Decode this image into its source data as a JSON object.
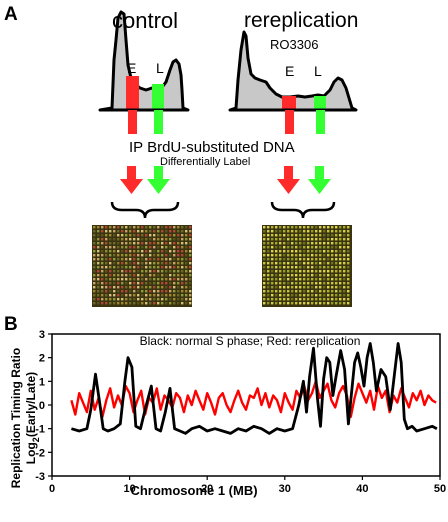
{
  "panel_a": {
    "label": "A",
    "control_title": "control",
    "rerep_title": "rereplication",
    "rerep_subtitle": "RO3306",
    "early_label": "E",
    "late_label": "L",
    "ip_text": "IP BrdU-substituted DNA",
    "diff_label": "Differentially Label",
    "colors": {
      "early": "#ff2a2a",
      "late": "#33ff33",
      "histogram": "#c8c8c8",
      "array_base": "#3a3510"
    }
  },
  "panel_b": {
    "label": "B",
    "chart_data": {
      "type": "line",
      "annotation": "Black: normal S phase; Red: rereplication",
      "xlabel": "Chromosome 1   (MB)",
      "ylabel_line1": "Replication Timing Ratio",
      "ylabel_line2_main": "Log",
      "ylabel_line2_sub": "2",
      "ylabel_line2_rest": "(Early/Late)",
      "xlim": [
        0,
        50
      ],
      "ylim": [
        -3,
        3
      ],
      "xticks": [
        0,
        10,
        20,
        30,
        40,
        50
      ],
      "yticks": [
        3,
        2,
        1,
        0,
        -1,
        -2,
        -3
      ],
      "grid": false,
      "series": [
        {
          "color": "#000000",
          "x": [
            2.5,
            3.5,
            4.5,
            5.0,
            5.6,
            6.1,
            6.6,
            7.2,
            8.0,
            8.8,
            9.4,
            9.8,
            10.3,
            10.8,
            11.4,
            12.0,
            12.8,
            13.4,
            14.0,
            14.6,
            15.2,
            15.8,
            16.5,
            17.2,
            18.0,
            19.0,
            20.0,
            21.0,
            22.0,
            23.0,
            24.0,
            25.0,
            26.0,
            27.0,
            28.0,
            29.0,
            30.0,
            31.0,
            31.8,
            32.4,
            32.8,
            33.2,
            33.7,
            34.2,
            34.6,
            35.0,
            35.4,
            35.8,
            36.2,
            36.6,
            37.2,
            37.7,
            38.2,
            38.6,
            39.0,
            39.4,
            39.8,
            40.2,
            40.6,
            41.0,
            41.4,
            41.8,
            42.4,
            43.0,
            43.6,
            44.2,
            44.6,
            45.0,
            45.4,
            45.8,
            46.4,
            47.0,
            48.0,
            49.0,
            49.6
          ],
          "y": [
            -1.0,
            -1.1,
            -1.0,
            -0.2,
            1.3,
            0.2,
            -1.0,
            -1.1,
            -1.0,
            -0.8,
            1.0,
            2.0,
            1.6,
            -0.9,
            -1.0,
            -0.2,
            0.8,
            -1.0,
            -1.1,
            -0.3,
            0.7,
            -1.0,
            -1.1,
            -1.2,
            -1.0,
            -0.9,
            -1.1,
            -1.0,
            -1.1,
            -1.2,
            -1.0,
            -1.1,
            -0.9,
            -1.0,
            -1.2,
            -1.0,
            -1.1,
            -1.0,
            0.0,
            1.0,
            -0.3,
            1.2,
            2.4,
            0.3,
            -0.9,
            1.1,
            2.0,
            1.8,
            0.4,
            1.2,
            2.3,
            1.5,
            -0.8,
            0.5,
            1.8,
            2.2,
            1.6,
            0.8,
            2.0,
            2.6,
            1.8,
            0.6,
            1.5,
            1.2,
            -0.2,
            1.5,
            2.6,
            1.8,
            -0.6,
            -1.0,
            -0.9,
            -1.1,
            -1.0,
            -0.9,
            -1.0
          ]
        },
        {
          "color": "#ff0000",
          "x": [
            2.5,
            3.0,
            3.5,
            4.0,
            4.5,
            5.0,
            5.5,
            6.0,
            6.5,
            7.0,
            7.5,
            8.0,
            8.5,
            9.0,
            9.5,
            10.0,
            10.5,
            11.0,
            11.5,
            12.0,
            12.5,
            13.0,
            13.5,
            14.0,
            14.5,
            15.0,
            15.5,
            16.0,
            16.5,
            17.0,
            17.5,
            18.0,
            18.5,
            19.0,
            19.5,
            20.0,
            20.5,
            21.0,
            21.5,
            22.0,
            22.5,
            23.0,
            23.5,
            24.0,
            24.5,
            25.0,
            25.5,
            26.0,
            26.5,
            27.0,
            27.5,
            28.0,
            28.5,
            29.0,
            29.5,
            30.0,
            30.5,
            31.0,
            31.5,
            32.0,
            32.5,
            33.0,
            33.5,
            34.0,
            34.5,
            35.0,
            35.5,
            36.0,
            36.5,
            37.0,
            37.5,
            38.0,
            38.5,
            39.0,
            39.5,
            40.0,
            40.5,
            41.0,
            41.5,
            42.0,
            42.5,
            43.0,
            43.5,
            44.0,
            44.5,
            45.0,
            45.5,
            46.0,
            46.5,
            47.0,
            47.5,
            48.0,
            48.5,
            49.0,
            49.5
          ],
          "y": [
            0.2,
            -0.4,
            0.5,
            0.1,
            -0.3,
            0.6,
            -0.2,
            0.3,
            -0.5,
            0.2,
            0.7,
            -0.1,
            0.4,
            0.0,
            0.8,
            0.5,
            -0.3,
            0.2,
            0.6,
            -0.4,
            0.3,
            0.1,
            0.7,
            -0.2,
            0.4,
            0.2,
            -0.1,
            0.5,
            0.3,
            -0.3,
            0.4,
            0.0,
            0.6,
            0.2,
            -0.2,
            0.5,
            0.1,
            -0.4,
            0.3,
            0.5,
            0.0,
            -0.3,
            0.2,
            0.6,
            0.1,
            -0.2,
            0.4,
            0.3,
            0.7,
            0.0,
            0.5,
            -0.1,
            0.4,
            0.2,
            -0.3,
            0.5,
            0.1,
            -0.2,
            0.6,
            0.3,
            0.8,
            0.2,
            0.5,
            1.0,
            0.3,
            0.6,
            0.9,
            0.2,
            -0.1,
            0.5,
            0.8,
            0.4,
            -0.5,
            0.3,
            0.9,
            0.5,
            0.1,
            0.6,
            -0.2,
            0.8,
            0.3,
            0.6,
            -0.3,
            0.4,
            0.1,
            0.7,
            0.3,
            -0.1,
            0.5,
            0.2,
            0.6,
            0.0,
            0.4,
            0.2,
            0.1
          ]
        }
      ]
    }
  }
}
